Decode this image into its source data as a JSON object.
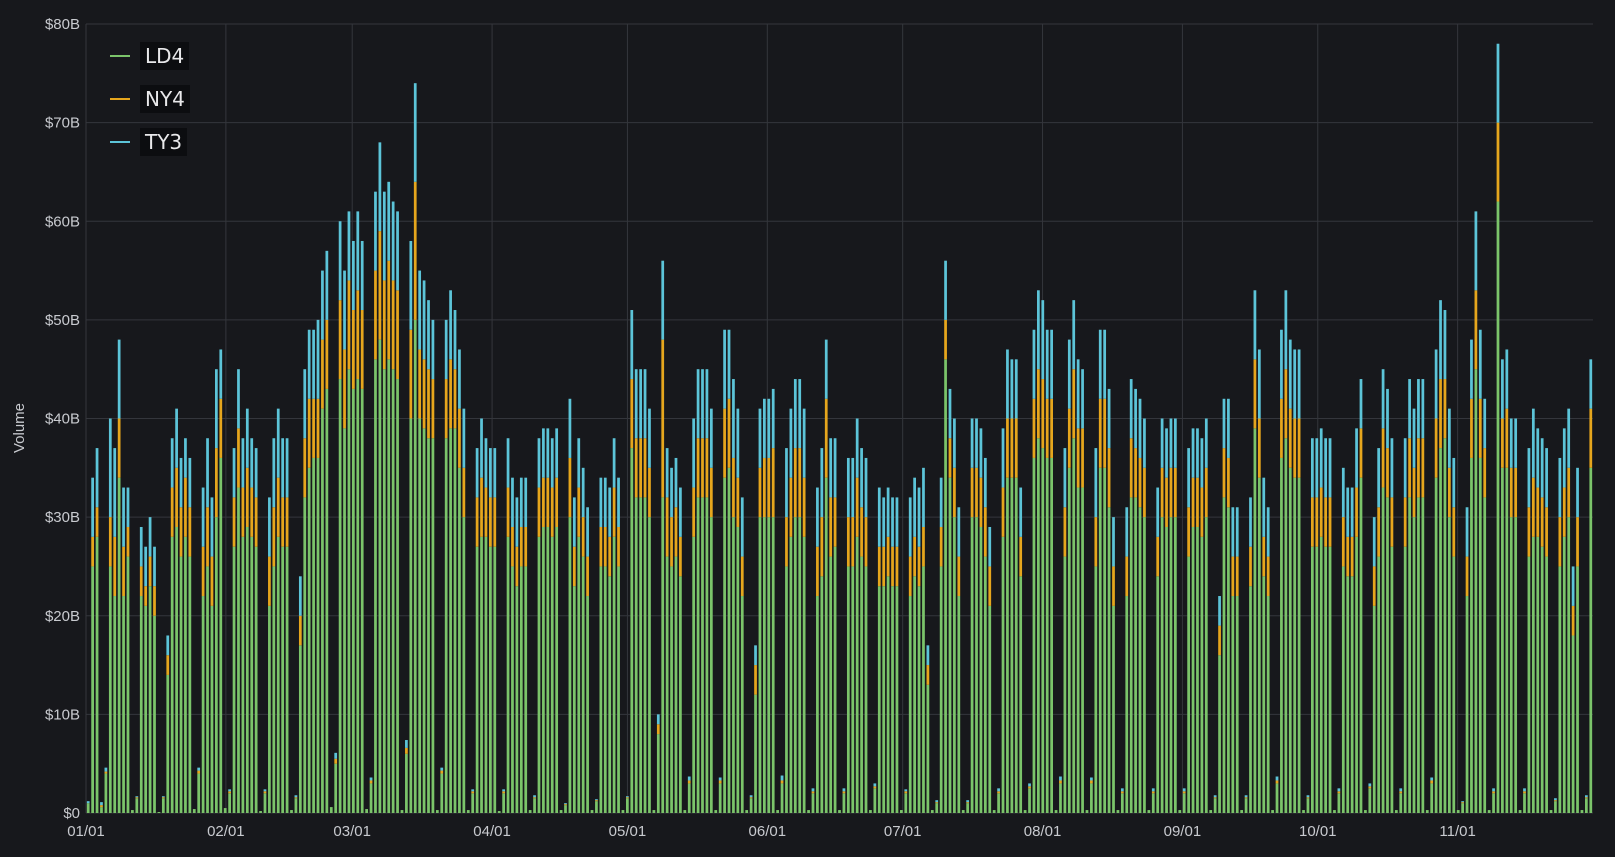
{
  "chart_data": {
    "type": "bar",
    "stacked": true,
    "ylabel": "Volume",
    "ylim": [
      0,
      80
    ],
    "y_ticks": [
      "$0",
      "$10B",
      "$20B",
      "$30B",
      "$40B",
      "$50B",
      "$60B",
      "$70B",
      "$80B"
    ],
    "x_ticks": [
      "01/01",
      "02/01",
      "03/01",
      "04/01",
      "05/01",
      "06/01",
      "07/01",
      "08/01",
      "09/01",
      "10/01",
      "11/01"
    ],
    "x_range": [
      "01/01",
      "11/30"
    ],
    "grid": true,
    "legend_position": "top-left",
    "value_unit": "billions USD",
    "series": [
      {
        "name": "LD4",
        "color": "#7bc46a",
        "values": [
          1.0,
          25,
          28,
          0.6,
          4,
          25,
          22,
          34,
          22,
          26,
          0.3,
          1.5,
          22,
          21,
          23,
          20,
          0.1,
          1.5,
          14,
          28,
          29,
          26,
          28,
          26,
          0.4,
          4,
          22,
          25,
          21,
          30,
          36,
          0.5,
          2,
          27,
          33,
          28,
          29,
          28,
          27,
          0.2,
          2,
          21,
          25,
          28,
          27,
          27,
          0.3,
          1.5,
          17,
          32,
          35,
          36,
          36,
          41,
          43,
          0.6,
          5,
          44,
          39,
          45,
          43,
          44,
          43,
          0.4,
          3,
          46,
          48,
          45,
          46,
          45,
          44,
          0.3,
          6,
          40,
          50,
          40,
          39,
          38,
          38,
          0.3,
          4,
          38,
          39,
          39,
          35,
          30,
          0.3,
          2,
          27,
          28,
          28,
          27,
          27,
          0.2,
          2,
          28,
          25,
          23,
          25,
          25,
          0.3,
          1.5,
          28,
          29,
          29,
          28,
          29,
          0.3,
          0.8,
          30,
          23,
          28,
          26,
          22,
          0.3,
          1.2,
          25,
          25,
          24,
          28,
          25,
          0.3,
          1.5,
          37,
          32,
          32,
          32,
          30,
          0.3,
          8,
          32,
          26,
          25,
          26,
          24,
          0.3,
          3,
          28,
          32,
          32,
          32,
          30,
          0.3,
          3,
          34,
          35,
          30,
          29,
          22,
          0.3,
          1.5,
          12,
          30,
          30,
          30,
          30,
          0.3,
          3,
          25,
          28,
          30,
          30,
          28,
          0.3,
          2,
          22,
          24,
          34,
          26,
          27,
          0.3,
          2,
          25,
          25,
          28,
          26,
          25,
          0.3,
          2.5,
          23,
          23,
          24,
          23,
          23,
          0.3,
          2,
          22,
          24,
          23,
          25,
          13,
          0.3,
          1,
          25,
          46,
          34,
          30,
          22,
          0.3,
          1,
          30,
          30,
          29,
          26,
          21,
          0.3,
          2,
          28,
          34,
          34,
          34,
          24,
          0.3,
          2.5,
          36,
          38,
          37,
          36,
          36,
          0.3,
          3,
          26,
          35,
          38,
          33,
          33,
          0.3,
          3,
          25,
          35,
          35,
          31,
          21,
          0.3,
          2,
          22,
          32,
          32,
          31,
          30,
          0.3,
          2,
          24,
          30,
          29,
          30,
          30,
          0.3,
          2,
          26,
          29,
          29,
          28,
          30,
          0.3,
          1.5,
          16,
          32,
          31,
          22,
          22,
          0.3,
          1.5,
          23,
          39,
          34,
          24,
          22,
          0.3,
          3,
          36,
          38,
          35,
          34,
          34,
          0.3,
          1.5,
          27,
          27,
          28,
          27,
          27,
          0.3,
          2,
          25,
          24,
          24,
          28,
          34,
          0.3,
          2.5,
          21,
          26,
          33,
          32,
          27,
          0.3,
          2,
          27,
          32,
          30,
          32,
          32,
          0.3,
          3,
          34,
          37,
          38,
          30,
          26,
          0.3,
          1,
          22,
          36,
          45,
          36,
          32,
          0.3,
          2,
          62,
          35,
          35,
          30,
          30,
          0.3,
          2,
          26,
          28,
          28,
          27,
          26,
          0.3,
          1.2,
          25,
          28,
          30,
          18,
          25,
          0.3,
          1.5,
          35
        ]
      },
      {
        "name": "NY4",
        "color": "#e6a61d",
        "values": [
          0,
          3,
          3,
          0.2,
          0.2,
          5,
          6,
          6,
          5,
          3,
          0,
          0.1,
          3,
          2,
          3,
          3,
          0,
          0.1,
          2,
          5,
          6,
          5,
          6,
          5,
          0,
          0.3,
          5,
          6,
          5,
          7,
          6,
          0,
          0.2,
          5,
          6,
          5,
          6,
          5,
          5,
          0,
          0.2,
          5,
          6,
          6,
          5,
          5,
          0,
          0.1,
          3,
          6,
          7,
          6,
          6,
          7,
          7,
          0,
          0.5,
          8,
          8,
          9,
          8,
          9,
          8,
          0,
          0.3,
          9,
          11,
          9,
          10,
          9,
          9,
          0,
          0.6,
          9,
          14,
          7,
          7,
          7,
          6,
          0,
          0.3,
          6,
          7,
          6,
          6,
          5,
          0,
          0.2,
          5,
          6,
          5,
          5,
          5,
          0,
          0.2,
          5,
          4,
          4,
          4,
          4,
          0,
          0.1,
          5,
          5,
          5,
          5,
          5,
          0,
          0.1,
          6,
          4,
          5,
          4,
          4,
          0,
          0.1,
          4,
          4,
          4,
          5,
          4,
          0,
          0.1,
          7,
          6,
          6,
          6,
          5,
          0,
          1,
          16,
          6,
          5,
          5,
          4,
          0,
          0.3,
          5,
          6,
          6,
          6,
          5,
          0,
          0.3,
          7,
          7,
          6,
          5,
          4,
          0,
          0.1,
          3,
          5,
          6,
          6,
          7,
          0,
          0.3,
          5,
          6,
          7,
          7,
          6,
          0,
          0.2,
          5,
          6,
          8,
          6,
          5,
          0,
          0.2,
          5,
          5,
          6,
          5,
          5,
          0,
          0.2,
          4,
          4,
          4,
          4,
          4,
          0,
          0.2,
          4,
          4,
          4,
          4,
          2,
          0,
          0.1,
          4,
          4,
          4,
          5,
          4,
          0,
          0.1,
          5,
          5,
          5,
          5,
          4,
          0,
          0.2,
          5,
          6,
          6,
          6,
          4,
          0,
          0.2,
          6,
          7,
          7,
          6,
          6,
          0,
          0.3,
          5,
          6,
          7,
          6,
          6,
          0,
          0.3,
          5,
          7,
          7,
          6,
          4,
          0,
          0.2,
          4,
          6,
          5,
          5,
          5,
          0,
          0.2,
          4,
          5,
          5,
          5,
          5,
          0,
          0.2,
          5,
          5,
          5,
          5,
          5,
          0,
          0.1,
          3,
          5,
          5,
          4,
          4,
          0,
          0.1,
          4,
          7,
          6,
          4,
          4,
          0,
          0.3,
          6,
          7,
          6,
          6,
          6,
          0,
          0.1,
          5,
          5,
          5,
          5,
          5,
          0,
          0.2,
          5,
          4,
          4,
          5,
          5,
          0,
          0.2,
          4,
          5,
          6,
          5,
          5,
          0,
          0.2,
          5,
          6,
          5,
          6,
          6,
          0,
          0.3,
          6,
          7,
          6,
          5,
          5,
          0,
          0.1,
          4,
          6,
          8,
          6,
          5,
          0,
          0.2,
          8,
          5,
          6,
          5,
          5,
          0,
          0.2,
          5,
          6,
          5,
          5,
          5,
          0,
          0.1,
          5,
          5,
          5,
          3,
          5,
          0,
          0.1,
          6
        ]
      },
      {
        "name": "TY3",
        "color": "#5cc4d8",
        "values": [
          0.2,
          6,
          6,
          0.3,
          0.4,
          10,
          9,
          8,
          6,
          4,
          0,
          0.1,
          4,
          4,
          4,
          4,
          0,
          0.1,
          2,
          5,
          6,
          5,
          4,
          5,
          0,
          0.3,
          6,
          7,
          6,
          8,
          5,
          0,
          0.2,
          5,
          6,
          5,
          6,
          5,
          5,
          0,
          0.2,
          6,
          7,
          7,
          6,
          6,
          0,
          0.2,
          4,
          7,
          7,
          7,
          8,
          7,
          7,
          0,
          0.6,
          8,
          8,
          7,
          7,
          8,
          7,
          0,
          0.3,
          8,
          9,
          9,
          8,
          8,
          8,
          0,
          0.8,
          9,
          10,
          8,
          8,
          7,
          6,
          0,
          0.3,
          6,
          7,
          6,
          6,
          6,
          0,
          0.2,
          5,
          6,
          5,
          5,
          5,
          0,
          0.2,
          5,
          5,
          5,
          5,
          5,
          0,
          0.2,
          5,
          5,
          5,
          5,
          5,
          0,
          0.1,
          6,
          5,
          5,
          5,
          5,
          0,
          0.1,
          5,
          5,
          5,
          5,
          5,
          0,
          0.1,
          7,
          7,
          7,
          7,
          6,
          0,
          1,
          8,
          5,
          5,
          5,
          5,
          0,
          0.4,
          7,
          7,
          7,
          7,
          6,
          0,
          0.3,
          8,
          7,
          8,
          7,
          6,
          0,
          0.2,
          2,
          6,
          6,
          6,
          6,
          0,
          0.5,
          7,
          7,
          7,
          7,
          7,
          0,
          0.3,
          6,
          7,
          6,
          6,
          6,
          0,
          0.3,
          6,
          6,
          6,
          6,
          6,
          0,
          0.3,
          6,
          5,
          5,
          5,
          5,
          0,
          0.2,
          6,
          6,
          6,
          6,
          2,
          0,
          0.2,
          5,
          6,
          5,
          5,
          5,
          0,
          0.2,
          5,
          5,
          5,
          5,
          4,
          0,
          0.3,
          6,
          7,
          6,
          6,
          5,
          0,
          0.3,
          7,
          8,
          8,
          7,
          7,
          0,
          0.4,
          6,
          7,
          7,
          7,
          6,
          0,
          0.3,
          7,
          7,
          7,
          6,
          5,
          0,
          0.3,
          5,
          6,
          6,
          6,
          5,
          0,
          0.3,
          5,
          5,
          5,
          5,
          5,
          0,
          0.3,
          6,
          5,
          5,
          5,
          5,
          0,
          0.2,
          3,
          5,
          6,
          5,
          5,
          0,
          0.2,
          5,
          7,
          7,
          6,
          5,
          0,
          0.4,
          7,
          8,
          7,
          7,
          7,
          0,
          0.2,
          6,
          6,
          6,
          6,
          6,
          0,
          0.3,
          5,
          5,
          5,
          6,
          5,
          0,
          0.3,
          5,
          6,
          6,
          6,
          6,
          0,
          0.3,
          6,
          6,
          6,
          6,
          6,
          0,
          0.3,
          7,
          8,
          7,
          6,
          5,
          0,
          0.1,
          5,
          6,
          8,
          7,
          5,
          0,
          0.3,
          8,
          6,
          6,
          5,
          5,
          0,
          0.3,
          6,
          7,
          6,
          6,
          6,
          0,
          0.2,
          6,
          6,
          6,
          4,
          5,
          0,
          0.2,
          5
        ]
      }
    ]
  }
}
